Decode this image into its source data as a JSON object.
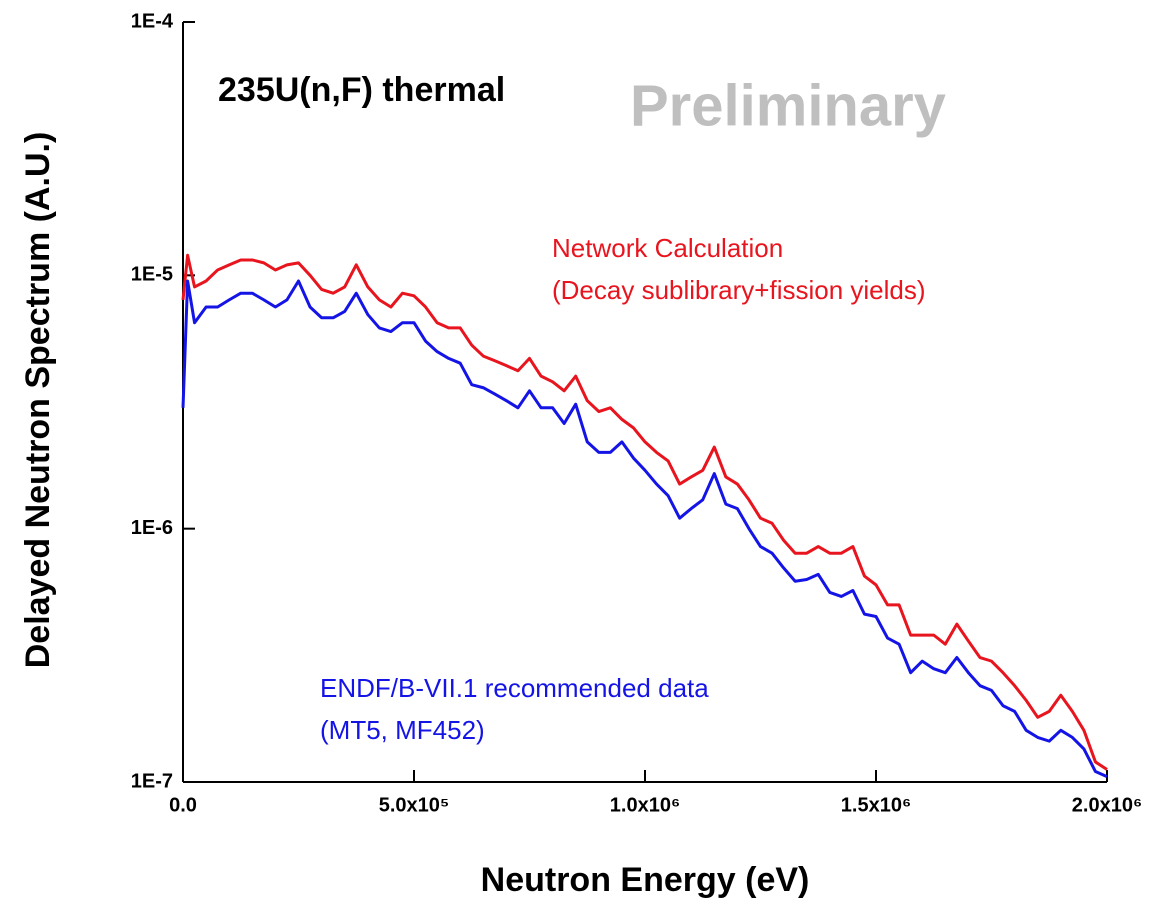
{
  "chart_data": {
    "type": "line",
    "title": "235U(n,F) thermal",
    "annotations": [
      "Preliminary"
    ],
    "x_label": "Neutron Energy (eV)",
    "y_label": "Delayed Neutron Spectrum (A.U.)",
    "log_y": true,
    "xlim": [
      0,
      2000000
    ],
    "ylim": [
      1e-07,
      0.0001
    ],
    "xticks": [
      {
        "value": 0,
        "label": "0.0"
      },
      {
        "value": 500000,
        "label": "5.0x10⁵"
      },
      {
        "value": 1000000,
        "label": "1.0x10⁶"
      },
      {
        "value": 1500000,
        "label": "1.5x10⁶"
      },
      {
        "value": 2000000,
        "label": "2.0x10⁶"
      }
    ],
    "yticks": [
      {
        "value": 1e-07,
        "label": "1E-7"
      },
      {
        "value": 1e-06,
        "label": "1E-6"
      },
      {
        "value": 1e-05,
        "label": "1E-5"
      },
      {
        "value": 0.0001,
        "label": "1E-4"
      }
    ],
    "x": [
      0,
      10000,
      25000,
      50000,
      75000,
      100000,
      125000,
      150000,
      175000,
      200000,
      225000,
      250000,
      275000,
      300000,
      325000,
      350000,
      375000,
      400000,
      425000,
      450000,
      475000,
      500000,
      525000,
      550000,
      575000,
      600000,
      625000,
      650000,
      675000,
      700000,
      725000,
      750000,
      775000,
      800000,
      825000,
      850000,
      875000,
      900000,
      925000,
      950000,
      975000,
      1000000,
      1025000,
      1050000,
      1075000,
      1100000,
      1125000,
      1150000,
      1175000,
      1200000,
      1225000,
      1250000,
      1275000,
      1300000,
      1325000,
      1350000,
      1375000,
      1400000,
      1425000,
      1450000,
      1475000,
      1500000,
      1525000,
      1550000,
      1575000,
      1600000,
      1625000,
      1650000,
      1675000,
      1700000,
      1725000,
      1750000,
      1775000,
      1800000,
      1825000,
      1850000,
      1875000,
      1900000,
      1925000,
      1950000,
      1975000,
      2000000
    ],
    "series": [
      {
        "label_lines": [
          "Network Calculation",
          "(Decay sublibrary+fission yields)"
        ],
        "color": "#e8141e",
        "values": [
          8e-06,
          1.2e-05,
          9e-06,
          9.5e-06,
          1.05e-05,
          1.1e-05,
          1.15e-05,
          1.15e-05,
          1.12e-05,
          1.05e-05,
          1.1e-05,
          1.12e-05,
          1e-05,
          8.8e-06,
          8.5e-06,
          9e-06,
          1.1e-05,
          9e-06,
          8e-06,
          7.5e-06,
          8.5e-06,
          8.3e-06,
          7.5e-06,
          6.5e-06,
          6.2e-06,
          6.2e-06,
          5.3e-06,
          4.8e-06,
          4.6e-06,
          4.4e-06,
          4.2e-06,
          4.7e-06,
          4e-06,
          3.8e-06,
          3.5e-06,
          4e-06,
          3.2e-06,
          2.9e-06,
          3e-06,
          2.7e-06,
          2.5e-06,
          2.2e-06,
          2e-06,
          1.85e-06,
          1.5e-06,
          1.6e-06,
          1.7e-06,
          2.1e-06,
          1.6e-06,
          1.5e-06,
          1.3e-06,
          1.1e-06,
          1.05e-06,
          9e-07,
          8e-07,
          8e-07,
          8.5e-07,
          8e-07,
          8e-07,
          8.5e-07,
          6.5e-07,
          6e-07,
          5e-07,
          5e-07,
          3.8e-07,
          3.8e-07,
          3.8e-07,
          3.5e-07,
          4.2e-07,
          3.6e-07,
          3.1e-07,
          3e-07,
          2.7e-07,
          2.4e-07,
          2.1e-07,
          1.8e-07,
          1.9e-07,
          2.2e-07,
          1.9e-07,
          1.6e-07,
          1.2e-07,
          1.12e-07
        ]
      },
      {
        "label_lines": [
          "ENDF/B-VII.1 recommended data",
          "(MT5, MF452)"
        ],
        "color": "#1414e6",
        "values": [
          3e-06,
          9.5e-06,
          6.5e-06,
          7.5e-06,
          7.5e-06,
          8e-06,
          8.5e-06,
          8.5e-06,
          8e-06,
          7.5e-06,
          8e-06,
          9.5e-06,
          7.5e-06,
          6.8e-06,
          6.8e-06,
          7.2e-06,
          8.5e-06,
          7e-06,
          6.2e-06,
          6e-06,
          6.5e-06,
          6.5e-06,
          5.5e-06,
          5e-06,
          4.7e-06,
          4.5e-06,
          3.7e-06,
          3.6e-06,
          3.4e-06,
          3.2e-06,
          3e-06,
          3.5e-06,
          3e-06,
          3e-06,
          2.6e-06,
          3.1e-06,
          2.2e-06,
          2e-06,
          2e-06,
          2.2e-06,
          1.9e-06,
          1.7e-06,
          1.5e-06,
          1.35e-06,
          1.1e-06,
          1.2e-06,
          1.3e-06,
          1.65e-06,
          1.25e-06,
          1.2e-06,
          1e-06,
          8.5e-07,
          8e-07,
          7e-07,
          6.2e-07,
          6.3e-07,
          6.6e-07,
          5.6e-07,
          5.4e-07,
          5.7e-07,
          4.6e-07,
          4.5e-07,
          3.7e-07,
          3.5e-07,
          2.7e-07,
          3e-07,
          2.8e-07,
          2.7e-07,
          3.1e-07,
          2.7e-07,
          2.4e-07,
          2.3e-07,
          2e-07,
          1.9e-07,
          1.6e-07,
          1.5e-07,
          1.45e-07,
          1.6e-07,
          1.5e-07,
          1.35e-07,
          1.1e-07,
          1.05e-07
        ]
      }
    ]
  }
}
